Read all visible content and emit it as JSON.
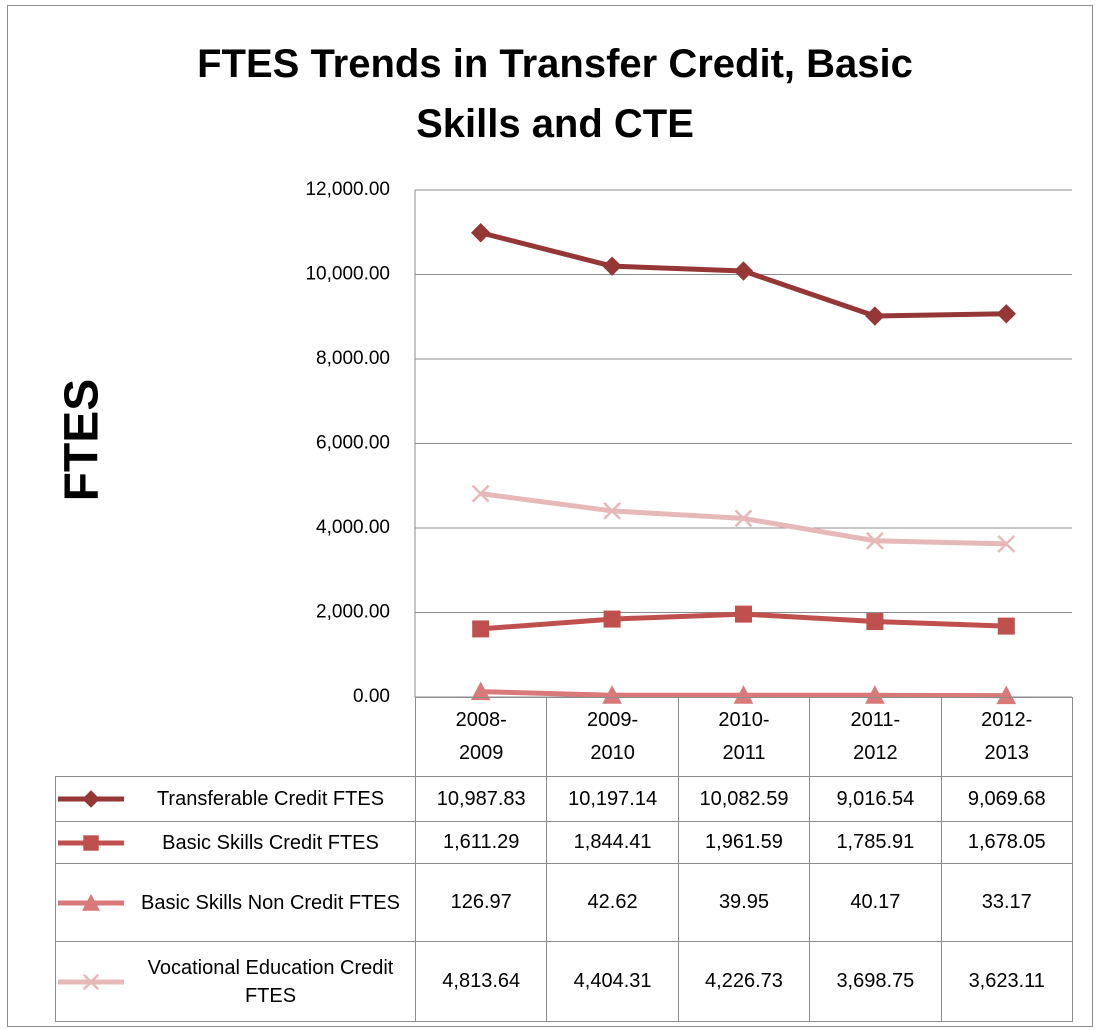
{
  "chart_data": {
    "type": "line",
    "title": "FTES Trends in Transfer Credit, Basic Skills and CTE",
    "y_label": "FTES",
    "categories": [
      "2008-\n2009",
      "2009-\n2010",
      "2010-\n2011",
      "2011-\n2012",
      "2012-\n2013"
    ],
    "ylim": [
      0,
      12000
    ],
    "yticks": [
      {
        "value": 0,
        "label": "0.00"
      },
      {
        "value": 2000,
        "label": "2,000.00"
      },
      {
        "value": 4000,
        "label": "4,000.00"
      },
      {
        "value": 6000,
        "label": "6,000.00"
      },
      {
        "value": 8000,
        "label": "8,000.00"
      },
      {
        "value": 10000,
        "label": "10,000.00"
      },
      {
        "value": 12000,
        "label": "12,000.00"
      }
    ],
    "grid": true,
    "series": [
      {
        "name": "Transferable Credit FTES",
        "color": "#953735",
        "marker": "diamond",
        "values": [
          10987.83,
          10197.14,
          10082.59,
          9016.54,
          9069.68
        ],
        "value_labels": [
          "10,987.83",
          "10,197.14",
          "10,082.59",
          "9,016.54",
          "9,069.68"
        ]
      },
      {
        "name": "Basic Skills Credit FTES",
        "color": "#c0504d",
        "marker": "square",
        "values": [
          1611.29,
          1844.41,
          1961.59,
          1785.91,
          1678.05
        ],
        "value_labels": [
          "1,611.29",
          "1,844.41",
          "1,961.59",
          "1,785.91",
          "1,678.05"
        ]
      },
      {
        "name": "Basic Skills Non Credit FTES",
        "color": "#d9797a",
        "marker": "triangle",
        "values": [
          126.97,
          42.62,
          39.95,
          40.17,
          33.17
        ],
        "value_labels": [
          "126.97",
          "42.62",
          "39.95",
          "40.17",
          "33.17"
        ]
      },
      {
        "name": "Vocational Education Credit FTES",
        "color": "#e6b9b8",
        "marker": "x",
        "values": [
          4813.64,
          4404.31,
          4226.73,
          3698.75,
          3623.11
        ],
        "value_labels": [
          "4,813.64",
          "4,404.31",
          "4,226.73",
          "3,698.75",
          "3,623.11"
        ]
      }
    ]
  }
}
